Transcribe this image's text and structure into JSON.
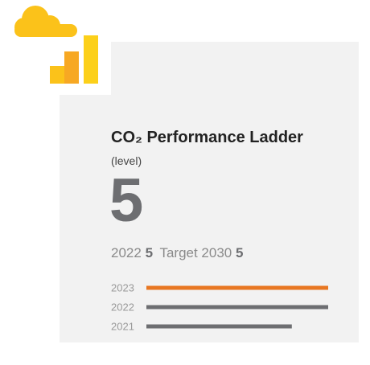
{
  "chart_data": {
    "type": "bar",
    "orientation": "horizontal",
    "title": "CO₂ Performance Ladder",
    "subtitle": "(level)",
    "value": 5,
    "previous_label": "2022",
    "previous_value": 5,
    "target_label": "Target 2030",
    "target_value": 5,
    "categories": [
      "2023",
      "2022",
      "2021"
    ],
    "values": [
      5,
      5,
      4
    ],
    "colors": [
      "#e87722",
      "#6d6e71",
      "#6d6e71"
    ],
    "xlim": [
      0,
      5
    ]
  }
}
